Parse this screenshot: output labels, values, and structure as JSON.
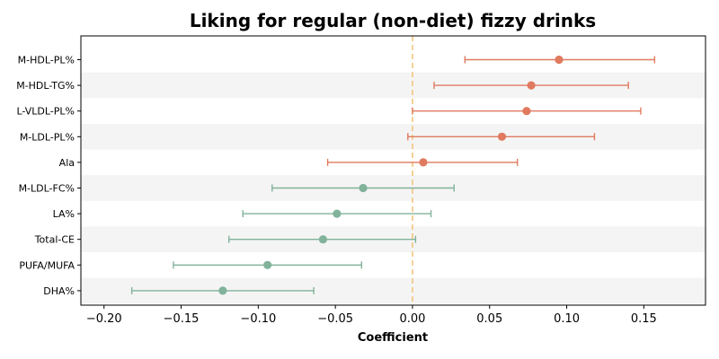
{
  "chart_data": {
    "type": "forest",
    "title": "Liking for regular (non-diet) fizzy drinks",
    "xlabel": "Coefficient",
    "ylabel": "",
    "xlim": [
      -0.215,
      0.19
    ],
    "xticks": [
      -0.2,
      -0.15,
      -0.1,
      -0.05,
      0.0,
      0.05,
      0.1,
      0.15
    ],
    "xtick_labels": [
      "−0.20",
      "−0.15",
      "−0.10",
      "−0.05",
      "0.00",
      "0.05",
      "0.10",
      "0.15"
    ],
    "reference_line": 0.0,
    "colors": {
      "positive": "#e07a5f",
      "negative": "#81b29a",
      "reference": "#f2c57c",
      "stripe": "#f4f4f4"
    },
    "rows": [
      {
        "label": "M-HDL-PL%",
        "coef": 0.095,
        "ci_low": 0.034,
        "ci_high": 0.157,
        "sign": "positive"
      },
      {
        "label": "M-HDL-TG%",
        "coef": 0.077,
        "ci_low": 0.014,
        "ci_high": 0.14,
        "sign": "positive"
      },
      {
        "label": "L-VLDL-PL%",
        "coef": 0.074,
        "ci_low": 0.0,
        "ci_high": 0.148,
        "sign": "positive"
      },
      {
        "label": "M-LDL-PL%",
        "coef": 0.058,
        "ci_low": -0.003,
        "ci_high": 0.118,
        "sign": "positive"
      },
      {
        "label": "Ala",
        "coef": 0.007,
        "ci_low": -0.055,
        "ci_high": 0.068,
        "sign": "positive"
      },
      {
        "label": "M-LDL-FC%",
        "coef": -0.032,
        "ci_low": -0.091,
        "ci_high": 0.027,
        "sign": "negative"
      },
      {
        "label": "LA%",
        "coef": -0.049,
        "ci_low": -0.11,
        "ci_high": 0.012,
        "sign": "negative"
      },
      {
        "label": "Total-CE",
        "coef": -0.058,
        "ci_low": -0.119,
        "ci_high": 0.002,
        "sign": "negative"
      },
      {
        "label": "PUFA/MUFA",
        "coef": -0.094,
        "ci_low": -0.155,
        "ci_high": -0.033,
        "sign": "negative"
      },
      {
        "label": "DHA%",
        "coef": -0.123,
        "ci_low": -0.182,
        "ci_high": -0.064,
        "sign": "negative"
      }
    ]
  }
}
